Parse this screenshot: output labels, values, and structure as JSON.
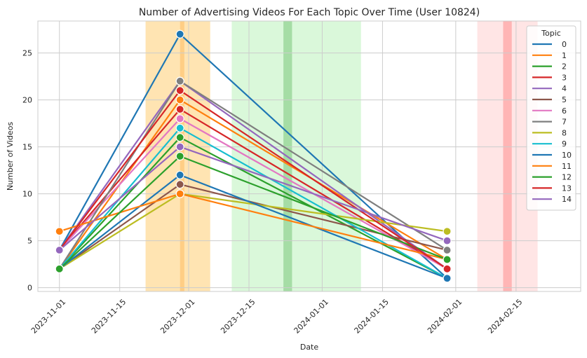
{
  "chart_data": {
    "type": "line",
    "title": "Number of Advertising Videos For Each Topic Over Time (User 10824)",
    "xlabel": "Date",
    "ylabel": "Number of Videos",
    "x": [
      "2023-11-01",
      "2023-11-29",
      "2024-01-30"
    ],
    "xlim": [
      "2023-10-27",
      "2024-03-01"
    ],
    "ylim": [
      -0.4,
      28.4
    ],
    "x_ticks": [
      "2023-11-01",
      "2023-11-15",
      "2023-12-01",
      "2023-12-15",
      "2024-01-01",
      "2024-01-15",
      "2024-02-01",
      "2024-02-15"
    ],
    "y_ticks": [
      0,
      5,
      10,
      15,
      20,
      25
    ],
    "grid": true,
    "legend": {
      "title": "Topic",
      "placement": "top-right"
    },
    "series": [
      {
        "name": "0",
        "color": "#1f77b4",
        "values": [
          4,
          27,
          1
        ]
      },
      {
        "name": "1",
        "color": "#ff7f0e",
        "values": [
          2,
          20,
          3
        ]
      },
      {
        "name": "2",
        "color": "#2ca02c",
        "values": [
          2,
          16,
          1
        ]
      },
      {
        "name": "3",
        "color": "#d62728",
        "values": [
          4,
          19,
          2
        ]
      },
      {
        "name": "4",
        "color": "#9467bd",
        "values": [
          4,
          22,
          2
        ]
      },
      {
        "name": "5",
        "color": "#8c564b",
        "values": [
          2,
          11,
          4
        ]
      },
      {
        "name": "6",
        "color": "#e377c2",
        "values": [
          4,
          18,
          2
        ]
      },
      {
        "name": "7",
        "color": "#7f7f7f",
        "values": [
          2,
          22,
          4
        ]
      },
      {
        "name": "8",
        "color": "#bcbd22",
        "values": [
          2,
          10,
          6
        ]
      },
      {
        "name": "9",
        "color": "#17becf",
        "values": [
          2,
          17,
          1
        ]
      },
      {
        "name": "10",
        "color": "#1f77b4",
        "values": [
          2,
          12,
          1
        ]
      },
      {
        "name": "11",
        "color": "#ff7f0e",
        "values": [
          6,
          10,
          3
        ]
      },
      {
        "name": "12",
        "color": "#2ca02c",
        "values": [
          2,
          14,
          3
        ]
      },
      {
        "name": "13",
        "color": "#d62728",
        "values": [
          4,
          21,
          2
        ]
      },
      {
        "name": "14",
        "color": "#9467bd",
        "values": [
          4,
          15,
          5
        ]
      }
    ],
    "shaded_regions": [
      {
        "start": "2023-11-21",
        "end": "2023-12-06",
        "color": "#ffa500",
        "alpha": 0.3
      },
      {
        "start": "2023-11-29",
        "end": "2023-11-30",
        "color": "#ff8c00",
        "alpha": 0.25
      },
      {
        "start": "2023-12-11",
        "end": "2024-01-10",
        "color": "#44dd44",
        "alpha": 0.2
      },
      {
        "start": "2023-12-23",
        "end": "2023-12-25",
        "color": "#2ca02c",
        "alpha": 0.3
      },
      {
        "start": "2024-02-06",
        "end": "2024-02-20",
        "color": "#ff9999",
        "alpha": 0.25
      },
      {
        "start": "2024-02-12",
        "end": "2024-02-14",
        "color": "#ff4444",
        "alpha": 0.3
      }
    ]
  }
}
